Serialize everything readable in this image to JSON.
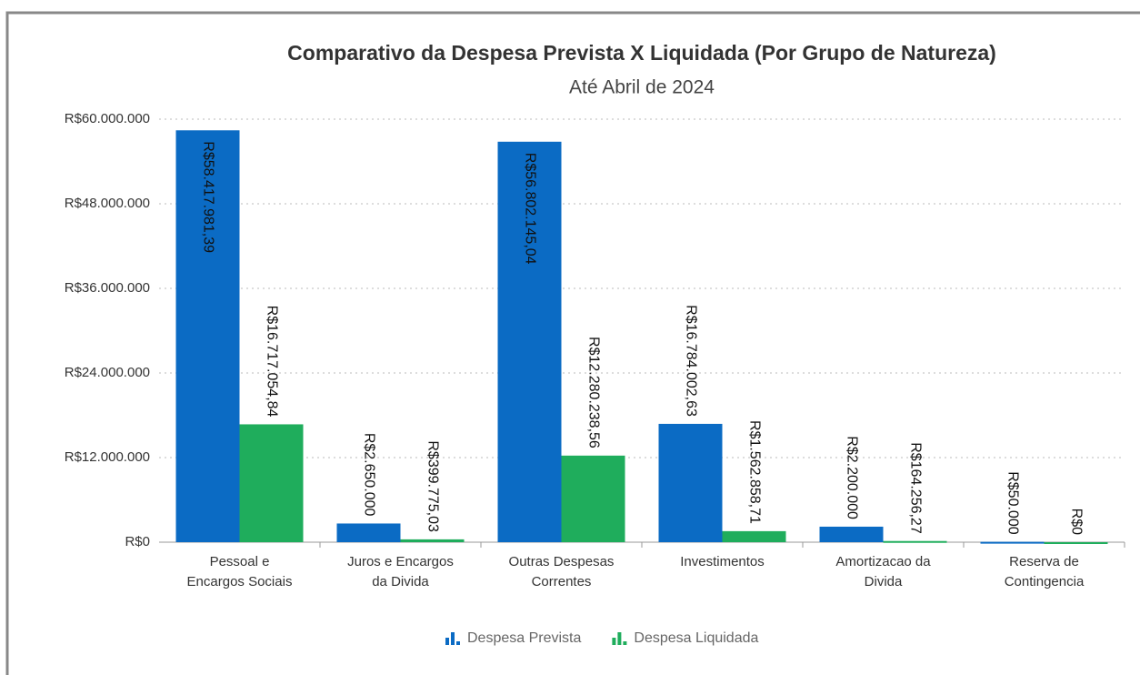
{
  "chart_data": {
    "type": "bar",
    "title": "Comparativo da Despesa Prevista X Liquidada (Por Grupo de Natureza)",
    "subtitle": "Até Abril de 2024",
    "categories": [
      [
        "Pessoal e",
        "Encargos Sociais"
      ],
      [
        "Juros e Encargos",
        "da Divida"
      ],
      [
        "Outras Despesas",
        "Correntes"
      ],
      [
        "Investimentos"
      ],
      [
        "Amortizacao da",
        "Divida"
      ],
      [
        "Reserva de",
        "Contingencia"
      ]
    ],
    "series": [
      {
        "name": "Despesa Prevista",
        "color": "#0b6bc4",
        "values": [
          58417981.39,
          2650000,
          56802145.04,
          16784002.63,
          2200000,
          50000
        ],
        "value_labels": [
          "R$58.417.981,39",
          "R$2.650.000",
          "R$56.802.145,04",
          "R$16.784.002,63",
          "R$2.200.000",
          "R$50.000"
        ]
      },
      {
        "name": "Despesa Liquidada",
        "color": "#1fad5c",
        "values": [
          16717054.84,
          399775.03,
          12280238.56,
          1562858.71,
          164256.27,
          0
        ],
        "value_labels": [
          "R$16.717.054,84",
          "R$399.775,03",
          "R$12.280.238,56",
          "R$1.562.858,71",
          "R$164.256,27",
          "R$0"
        ]
      }
    ],
    "ylim": [
      0,
      60000000
    ],
    "yticks": [
      {
        "value": 0,
        "label": "R$0"
      },
      {
        "value": 12000000,
        "label": "R$12.000.000"
      },
      {
        "value": 24000000,
        "label": "R$24.000.000"
      },
      {
        "value": 36000000,
        "label": "R$36.000.000"
      },
      {
        "value": 48000000,
        "label": "R$48.000.000"
      },
      {
        "value": 60000000,
        "label": "R$60.000.000"
      }
    ],
    "grid": true,
    "legend": "bottom"
  }
}
